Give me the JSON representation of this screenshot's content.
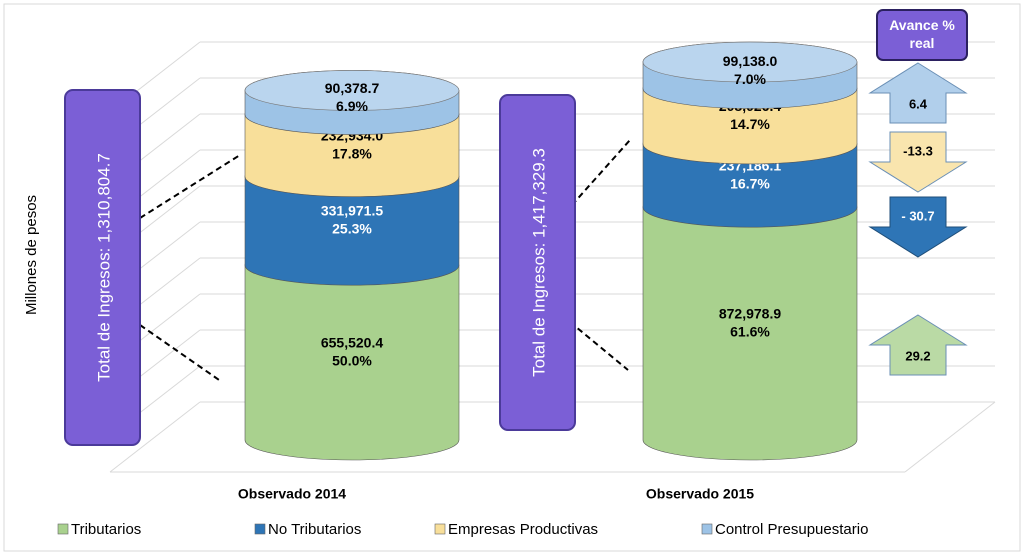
{
  "chart_data": {
    "type": "bar",
    "stacked": true,
    "y_label": "Millones de pesos",
    "categories": [
      "Observado 2014",
      "Observado 2015"
    ],
    "ylim": [
      0,
      1500000
    ],
    "totals": [
      1310804.7,
      1417329.3
    ],
    "total_labels": [
      "Total de Ingresos: 1,310,804.7",
      "Total de Ingresos: 1,417,329.3"
    ],
    "change_title": "Avance % real",
    "series": [
      {
        "name": "Tributarios",
        "color": "#a9d18e",
        "values": [
          655520.4,
          872978.9
        ],
        "value_labels": [
          "655,520.4",
          "872,978.9"
        ],
        "shares": [
          50.0,
          61.6
        ],
        "share_labels": [
          "50.0%",
          "61.6%"
        ],
        "change": 29.2,
        "change_label": "29.2"
      },
      {
        "name": "No Tributarios",
        "color": "#2e75b6",
        "values": [
          331971.5,
          237186.1
        ],
        "value_labels": [
          "331,971.5",
          "237,186.1"
        ],
        "shares": [
          25.3,
          16.7
        ],
        "share_labels": [
          "25.3%",
          "16.7%"
        ],
        "change": -30.7,
        "change_label": "- 30.7"
      },
      {
        "name": "Empresas Productivas",
        "color": "#f8df9a",
        "values": [
          232934.0,
          208026.4
        ],
        "value_labels": [
          "232,934.0",
          "208,026.4"
        ],
        "shares": [
          17.8,
          14.7
        ],
        "share_labels": [
          "17.8%",
          "14.7%"
        ],
        "change": -13.3,
        "change_label": "-13.3"
      },
      {
        "name": "Control Presupuestario",
        "color": "#9dc3e6",
        "values": [
          90378.7,
          99138.0
        ],
        "value_labels": [
          "90,378.7",
          "99,138.0"
        ],
        "shares": [
          6.9,
          7.0
        ],
        "share_labels": [
          "6.9%",
          "7.0%"
        ],
        "change": 6.4,
        "change_label": "6.4"
      }
    ]
  }
}
